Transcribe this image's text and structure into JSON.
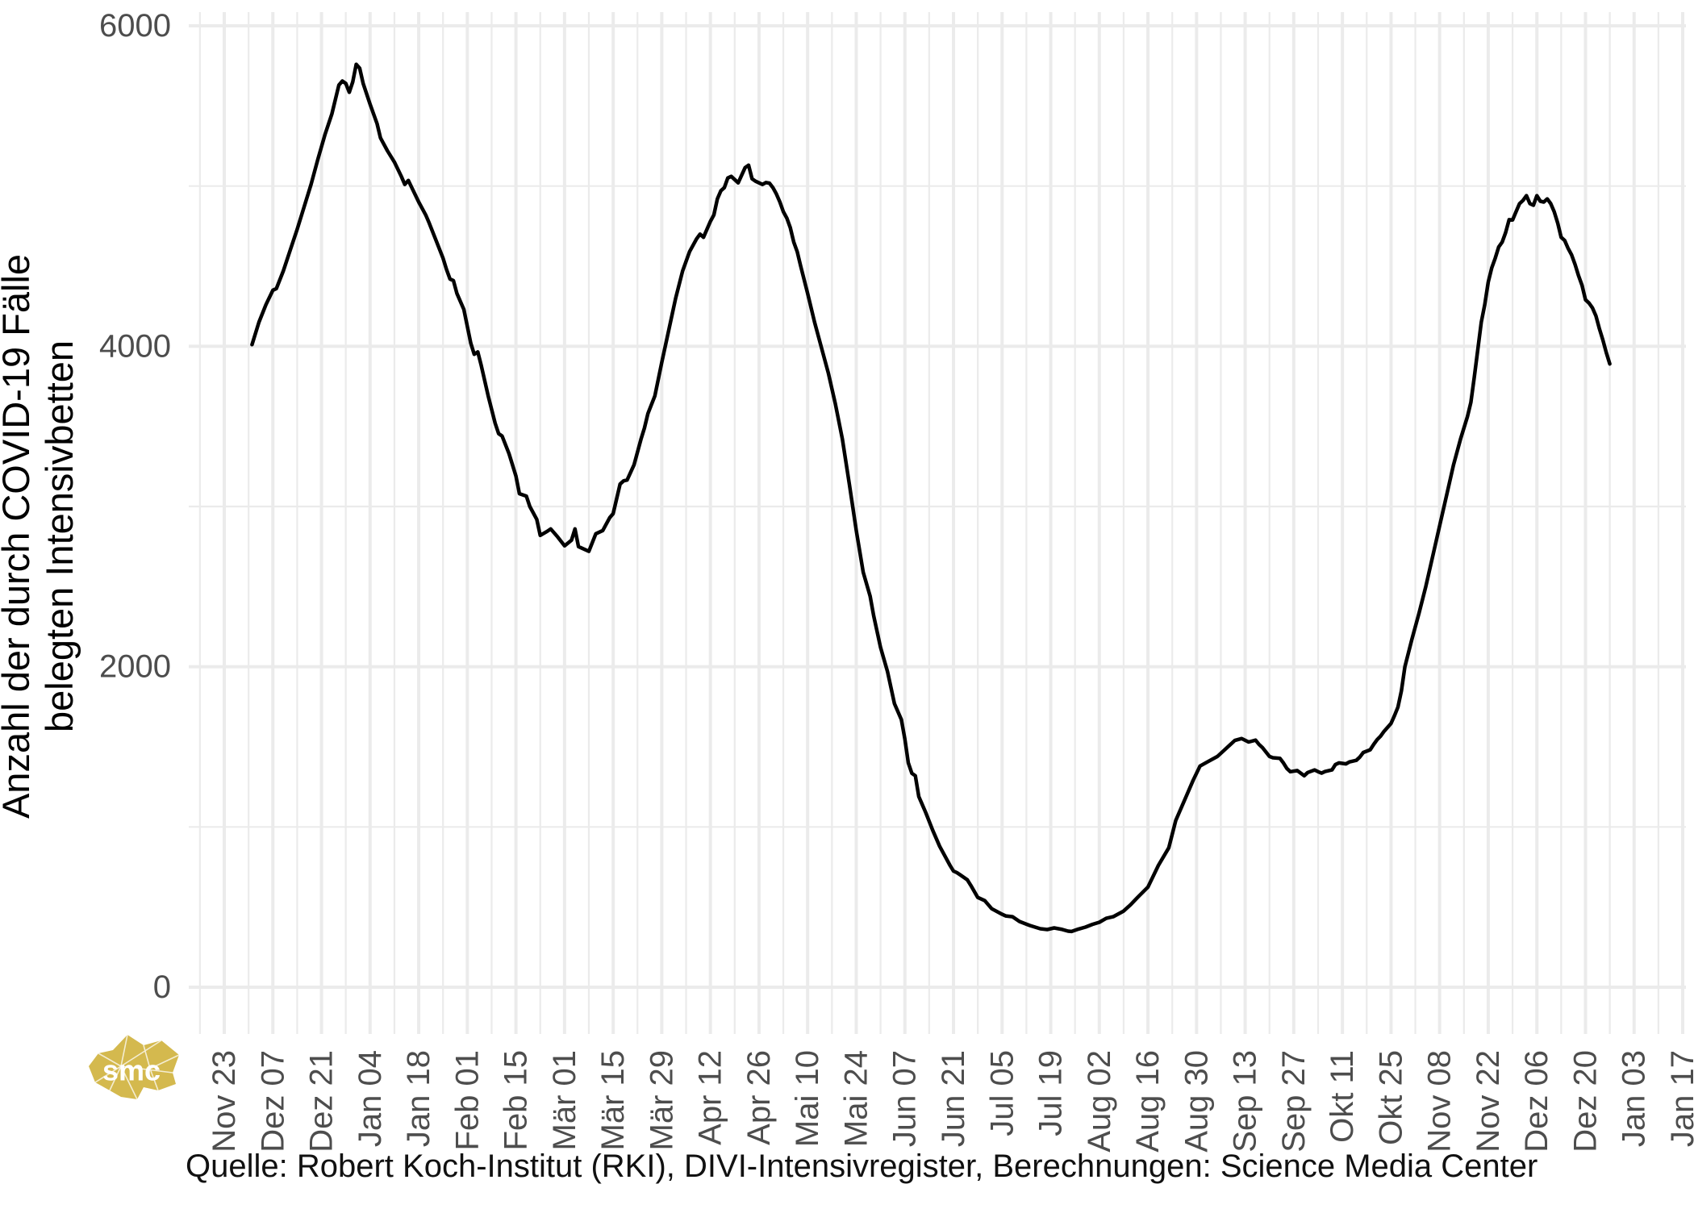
{
  "page": {
    "background": "#ffffff"
  },
  "logo": {
    "text": "smc",
    "color": "#d4b94e"
  },
  "caption": "Quelle: Robert Koch-Institut (RKI), DIVI-Intensivregister, Berechnungen: Science Media Center",
  "y_axis": {
    "title_line1": "Anzahl der durch COVID-19 Fälle",
    "title_line2": "belegten Intensivbetten",
    "tick_labels": [
      "0",
      "2000",
      "4000",
      "6000"
    ],
    "tick_values": [
      0,
      2000,
      4000,
      6000
    ],
    "minor_values": [
      1000,
      3000,
      5000
    ]
  },
  "x_axis": {
    "tick_labels": [
      "Nov 23",
      "Dez 07",
      "Dez 21",
      "Jan 04",
      "Jan 18",
      "Feb 01",
      "Feb 15",
      "Mär 01",
      "Mär 15",
      "Mär 29",
      "Apr 12",
      "Apr 26",
      "Mai 10",
      "Mai 24",
      "Jun 07",
      "Jun 21",
      "Jul 05",
      "Jul 19",
      "Aug 02",
      "Aug 16",
      "Aug 30",
      "Sep 13",
      "Sep 27",
      "Okt 11",
      "Okt 25",
      "Nov 08",
      "Nov 22",
      "Dez 06",
      "Dez 20",
      "Jan 03",
      "Jan 17"
    ],
    "tick_dates": [
      "2020-11-23",
      "2020-12-07",
      "2020-12-21",
      "2021-01-04",
      "2021-01-18",
      "2021-02-01",
      "2021-02-15",
      "2021-03-01",
      "2021-03-15",
      "2021-03-29",
      "2021-04-12",
      "2021-04-26",
      "2021-05-10",
      "2021-05-24",
      "2021-06-07",
      "2021-06-21",
      "2021-07-05",
      "2021-07-19",
      "2021-08-02",
      "2021-08-16",
      "2021-08-30",
      "2021-09-13",
      "2021-09-27",
      "2021-10-11",
      "2021-10-25",
      "2021-11-08",
      "2021-11-22",
      "2021-12-06",
      "2021-12-20",
      "2022-01-03",
      "2022-01-17"
    ]
  },
  "chart_data": {
    "type": "line",
    "title": "",
    "xlabel": "",
    "ylabel": "Anzahl der durch COVID-19 Fälle belegten Intensivbetten",
    "ylim": [
      0,
      6000
    ],
    "x_start_date": "2020-11-23",
    "x_end_date": "2022-01-17",
    "grid": true,
    "legend": "none",
    "line_color": "#000000",
    "grid_color": "#ebebeb",
    "tick_text_color": "#4d4d4d",
    "series": [
      {
        "name": "Durch COVID-19 Fälle belegte Intensivbetten",
        "points": [
          [
            "2020-12-01",
            4010
          ],
          [
            "2020-12-03",
            4150
          ],
          [
            "2020-12-05",
            4260
          ],
          [
            "2020-12-07",
            4350
          ],
          [
            "2020-12-08",
            4360
          ],
          [
            "2020-12-10",
            4470
          ],
          [
            "2020-12-12",
            4600
          ],
          [
            "2020-12-14",
            4730
          ],
          [
            "2020-12-16",
            4870
          ],
          [
            "2020-12-18",
            5010
          ],
          [
            "2020-12-20",
            5170
          ],
          [
            "2020-12-22",
            5320
          ],
          [
            "2020-12-24",
            5450
          ],
          [
            "2020-12-26",
            5630
          ],
          [
            "2020-12-27",
            5655
          ],
          [
            "2020-12-28",
            5640
          ],
          [
            "2020-12-29",
            5585
          ],
          [
            "2020-12-30",
            5650
          ],
          [
            "2020-12-31",
            5760
          ],
          [
            "2021-01-01",
            5735
          ],
          [
            "2021-01-02",
            5640
          ],
          [
            "2021-01-04",
            5510
          ],
          [
            "2021-01-06",
            5390
          ],
          [
            "2021-01-07",
            5300
          ],
          [
            "2021-01-09",
            5220
          ],
          [
            "2021-01-11",
            5150
          ],
          [
            "2021-01-13",
            5060
          ],
          [
            "2021-01-14",
            5010
          ],
          [
            "2021-01-15",
            5035
          ],
          [
            "2021-01-16",
            4990
          ],
          [
            "2021-01-18",
            4900
          ],
          [
            "2021-01-20",
            4820
          ],
          [
            "2021-01-21",
            4770
          ],
          [
            "2021-01-23",
            4660
          ],
          [
            "2021-01-25",
            4550
          ],
          [
            "2021-01-26",
            4480
          ],
          [
            "2021-01-27",
            4420
          ],
          [
            "2021-01-28",
            4410
          ],
          [
            "2021-01-29",
            4330
          ],
          [
            "2021-01-31",
            4230
          ],
          [
            "2021-02-02",
            4020
          ],
          [
            "2021-02-03",
            3950
          ],
          [
            "2021-02-04",
            3965
          ],
          [
            "2021-02-05",
            3880
          ],
          [
            "2021-02-07",
            3690
          ],
          [
            "2021-02-09",
            3520
          ],
          [
            "2021-02-10",
            3455
          ],
          [
            "2021-02-11",
            3440
          ],
          [
            "2021-02-13",
            3330
          ],
          [
            "2021-02-15",
            3190
          ],
          [
            "2021-02-16",
            3080
          ],
          [
            "2021-02-18",
            3065
          ],
          [
            "2021-02-19",
            3000
          ],
          [
            "2021-02-21",
            2920
          ],
          [
            "2021-02-22",
            2820
          ],
          [
            "2021-02-24",
            2845
          ],
          [
            "2021-02-25",
            2860
          ],
          [
            "2021-02-27",
            2810
          ],
          [
            "2021-03-01",
            2755
          ],
          [
            "2021-03-03",
            2790
          ],
          [
            "2021-03-04",
            2860
          ],
          [
            "2021-03-05",
            2750
          ],
          [
            "2021-03-06",
            2740
          ],
          [
            "2021-03-08",
            2720
          ],
          [
            "2021-03-10",
            2830
          ],
          [
            "2021-03-12",
            2850
          ],
          [
            "2021-03-14",
            2930
          ],
          [
            "2021-03-15",
            2955
          ],
          [
            "2021-03-17",
            3140
          ],
          [
            "2021-03-18",
            3160
          ],
          [
            "2021-03-19",
            3165
          ],
          [
            "2021-03-21",
            3260
          ],
          [
            "2021-03-23",
            3420
          ],
          [
            "2021-03-24",
            3490
          ],
          [
            "2021-03-25",
            3580
          ],
          [
            "2021-03-27",
            3690
          ],
          [
            "2021-03-29",
            3900
          ],
          [
            "2021-03-31",
            4100
          ],
          [
            "2021-04-02",
            4300
          ],
          [
            "2021-04-04",
            4470
          ],
          [
            "2021-04-06",
            4590
          ],
          [
            "2021-04-08",
            4670
          ],
          [
            "2021-04-09",
            4700
          ],
          [
            "2021-04-10",
            4680
          ],
          [
            "2021-04-12",
            4780
          ],
          [
            "2021-04-13",
            4820
          ],
          [
            "2021-04-14",
            4920
          ],
          [
            "2021-04-15",
            4970
          ],
          [
            "2021-04-16",
            4990
          ],
          [
            "2021-04-17",
            5050
          ],
          [
            "2021-04-18",
            5060
          ],
          [
            "2021-04-19",
            5040
          ],
          [
            "2021-04-20",
            5020
          ],
          [
            "2021-04-22",
            5115
          ],
          [
            "2021-04-23",
            5130
          ],
          [
            "2021-04-24",
            5045
          ],
          [
            "2021-04-25",
            5030
          ],
          [
            "2021-04-26",
            5020
          ],
          [
            "2021-04-27",
            5010
          ],
          [
            "2021-04-28",
            5022
          ],
          [
            "2021-04-29",
            5018
          ],
          [
            "2021-04-30",
            4990
          ],
          [
            "2021-05-01",
            4950
          ],
          [
            "2021-05-02",
            4900
          ],
          [
            "2021-05-03",
            4840
          ],
          [
            "2021-05-04",
            4800
          ],
          [
            "2021-05-05",
            4740
          ],
          [
            "2021-05-06",
            4650
          ],
          [
            "2021-05-07",
            4590
          ],
          [
            "2021-05-08",
            4500
          ],
          [
            "2021-05-10",
            4330
          ],
          [
            "2021-05-12",
            4150
          ],
          [
            "2021-05-14",
            3990
          ],
          [
            "2021-05-16",
            3830
          ],
          [
            "2021-05-18",
            3640
          ],
          [
            "2021-05-20",
            3420
          ],
          [
            "2021-05-22",
            3140
          ],
          [
            "2021-05-24",
            2850
          ],
          [
            "2021-05-26",
            2590
          ],
          [
            "2021-05-28",
            2440
          ],
          [
            "2021-05-29",
            2320
          ],
          [
            "2021-05-31",
            2120
          ],
          [
            "2021-06-02",
            1970
          ],
          [
            "2021-06-03",
            1870
          ],
          [
            "2021-06-04",
            1770
          ],
          [
            "2021-06-06",
            1670
          ],
          [
            "2021-06-07",
            1550
          ],
          [
            "2021-06-08",
            1400
          ],
          [
            "2021-06-09",
            1335
          ],
          [
            "2021-06-10",
            1320
          ],
          [
            "2021-06-11",
            1190
          ],
          [
            "2021-06-13",
            1090
          ],
          [
            "2021-06-15",
            980
          ],
          [
            "2021-06-17",
            880
          ],
          [
            "2021-06-19",
            800
          ],
          [
            "2021-06-20",
            760
          ],
          [
            "2021-06-21",
            725
          ],
          [
            "2021-06-22",
            715
          ],
          [
            "2021-06-23",
            700
          ],
          [
            "2021-06-25",
            670
          ],
          [
            "2021-06-26",
            635
          ],
          [
            "2021-06-28",
            560
          ],
          [
            "2021-06-30",
            540
          ],
          [
            "2021-07-02",
            490
          ],
          [
            "2021-07-05",
            455
          ],
          [
            "2021-07-06",
            445
          ],
          [
            "2021-07-08",
            440
          ],
          [
            "2021-07-10",
            410
          ],
          [
            "2021-07-13",
            385
          ],
          [
            "2021-07-16",
            365
          ],
          [
            "2021-07-18",
            360
          ],
          [
            "2021-07-20",
            370
          ],
          [
            "2021-07-22",
            362
          ],
          [
            "2021-07-24",
            350
          ],
          [
            "2021-07-25",
            348
          ],
          [
            "2021-07-27",
            363
          ],
          [
            "2021-07-29",
            375
          ],
          [
            "2021-07-31",
            392
          ],
          [
            "2021-08-02",
            405
          ],
          [
            "2021-08-04",
            430
          ],
          [
            "2021-08-06",
            440
          ],
          [
            "2021-08-09",
            475
          ],
          [
            "2021-08-11",
            515
          ],
          [
            "2021-08-13",
            560
          ],
          [
            "2021-08-16",
            625
          ],
          [
            "2021-08-19",
            760
          ],
          [
            "2021-08-22",
            870
          ],
          [
            "2021-08-24",
            1040
          ],
          [
            "2021-08-27",
            1190
          ],
          [
            "2021-08-29",
            1290
          ],
          [
            "2021-08-31",
            1380
          ],
          [
            "2021-09-02",
            1405
          ],
          [
            "2021-09-05",
            1440
          ],
          [
            "2021-09-07",
            1480
          ],
          [
            "2021-09-10",
            1540
          ],
          [
            "2021-09-12",
            1552
          ],
          [
            "2021-09-14",
            1530
          ],
          [
            "2021-09-16",
            1542
          ],
          [
            "2021-09-17",
            1515
          ],
          [
            "2021-09-18",
            1495
          ],
          [
            "2021-09-20",
            1440
          ],
          [
            "2021-09-21",
            1432
          ],
          [
            "2021-09-23",
            1428
          ],
          [
            "2021-09-24",
            1400
          ],
          [
            "2021-09-25",
            1365
          ],
          [
            "2021-09-26",
            1345
          ],
          [
            "2021-09-28",
            1352
          ],
          [
            "2021-09-30",
            1320
          ],
          [
            "2021-10-01",
            1340
          ],
          [
            "2021-10-03",
            1356
          ],
          [
            "2021-10-04",
            1345
          ],
          [
            "2021-10-05",
            1336
          ],
          [
            "2021-10-06",
            1346
          ],
          [
            "2021-10-08",
            1356
          ],
          [
            "2021-10-09",
            1390
          ],
          [
            "2021-10-10",
            1400
          ],
          [
            "2021-10-12",
            1394
          ],
          [
            "2021-10-13",
            1406
          ],
          [
            "2021-10-15",
            1416
          ],
          [
            "2021-10-16",
            1436
          ],
          [
            "2021-10-17",
            1465
          ],
          [
            "2021-10-19",
            1482
          ],
          [
            "2021-10-20",
            1515
          ],
          [
            "2021-10-21",
            1545
          ],
          [
            "2021-10-22",
            1567
          ],
          [
            "2021-10-23",
            1597
          ],
          [
            "2021-10-25",
            1646
          ],
          [
            "2021-10-26",
            1695
          ],
          [
            "2021-10-27",
            1748
          ],
          [
            "2021-10-28",
            1850
          ],
          [
            "2021-10-29",
            2000
          ],
          [
            "2021-10-31",
            2170
          ],
          [
            "2021-11-02",
            2330
          ],
          [
            "2021-11-04",
            2500
          ],
          [
            "2021-11-06",
            2690
          ],
          [
            "2021-11-08",
            2880
          ],
          [
            "2021-11-10",
            3070
          ],
          [
            "2021-11-12",
            3260
          ],
          [
            "2021-11-14",
            3420
          ],
          [
            "2021-11-16",
            3560
          ],
          [
            "2021-11-17",
            3650
          ],
          [
            "2021-11-18",
            3810
          ],
          [
            "2021-11-19",
            3980
          ],
          [
            "2021-11-20",
            4150
          ],
          [
            "2021-11-21",
            4260
          ],
          [
            "2021-11-22",
            4400
          ],
          [
            "2021-11-23",
            4490
          ],
          [
            "2021-11-24",
            4550
          ],
          [
            "2021-11-25",
            4620
          ],
          [
            "2021-11-26",
            4650
          ],
          [
            "2021-11-27",
            4710
          ],
          [
            "2021-11-28",
            4790
          ],
          [
            "2021-11-29",
            4788
          ],
          [
            "2021-11-30",
            4840
          ],
          [
            "2021-12-01",
            4890
          ],
          [
            "2021-12-02",
            4910
          ],
          [
            "2021-12-03",
            4940
          ],
          [
            "2021-12-04",
            4890
          ],
          [
            "2021-12-05",
            4880
          ],
          [
            "2021-12-06",
            4940
          ],
          [
            "2021-12-07",
            4905
          ],
          [
            "2021-12-08",
            4900
          ],
          [
            "2021-12-09",
            4920
          ],
          [
            "2021-12-10",
            4890
          ],
          [
            "2021-12-11",
            4840
          ],
          [
            "2021-12-12",
            4770
          ],
          [
            "2021-12-13",
            4680
          ],
          [
            "2021-12-14",
            4660
          ],
          [
            "2021-12-15",
            4610
          ],
          [
            "2021-12-16",
            4570
          ],
          [
            "2021-12-17",
            4510
          ],
          [
            "2021-12-18",
            4440
          ],
          [
            "2021-12-19",
            4380
          ],
          [
            "2021-12-20",
            4290
          ],
          [
            "2021-12-21",
            4270
          ],
          [
            "2021-12-22",
            4240
          ],
          [
            "2021-12-23",
            4190
          ],
          [
            "2021-12-24",
            4110
          ],
          [
            "2021-12-25",
            4040
          ],
          [
            "2021-12-26",
            3960
          ],
          [
            "2021-12-27",
            3890
          ]
        ]
      }
    ]
  }
}
